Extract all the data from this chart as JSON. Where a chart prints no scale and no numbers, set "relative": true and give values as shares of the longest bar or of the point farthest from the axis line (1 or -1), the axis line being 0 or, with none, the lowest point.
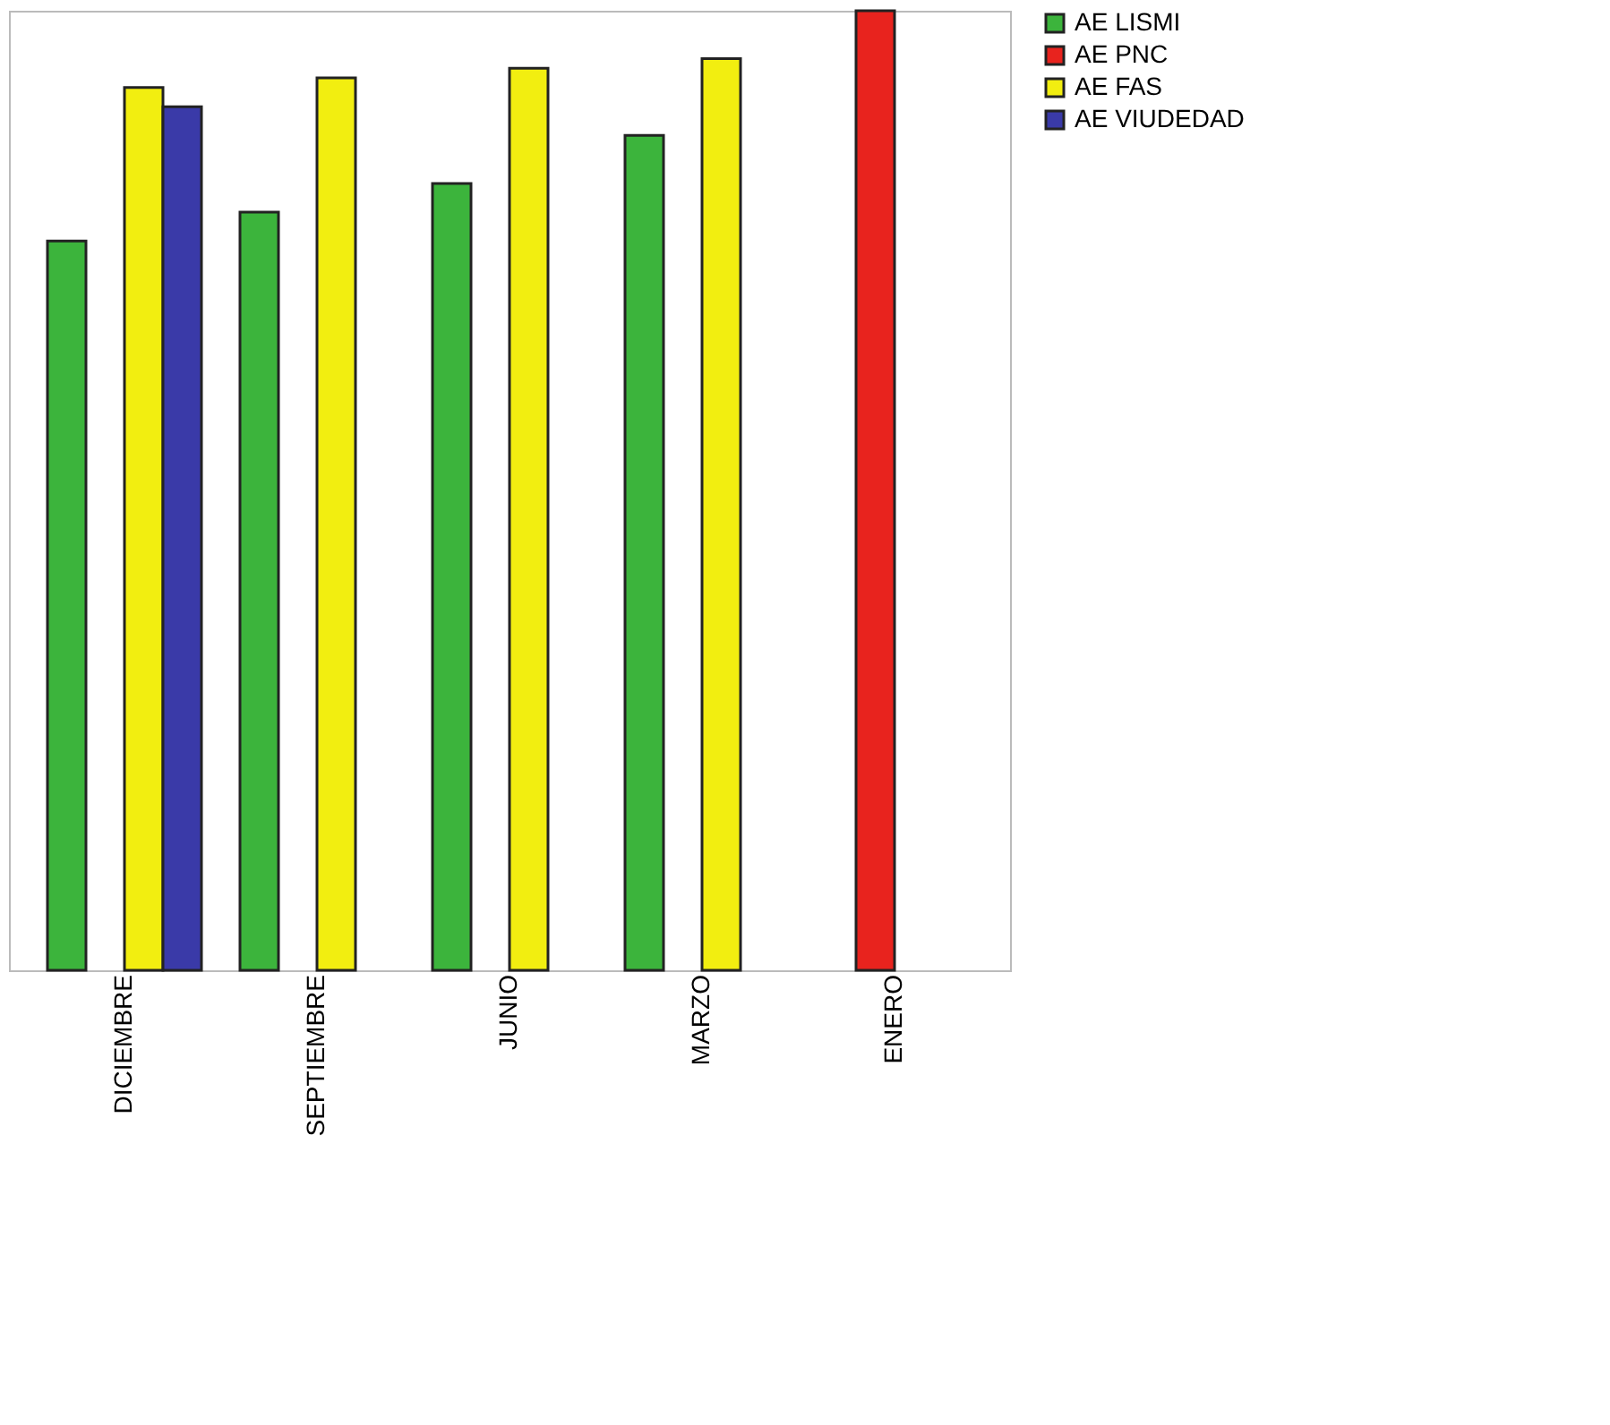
{
  "chart_data": {
    "type": "bar",
    "relative": true,
    "grid": false,
    "legend": "right",
    "categories": [
      "DICIEMBRE",
      "SEPTIEMBRE",
      "JUNIO",
      "MARZO",
      "ENERO"
    ],
    "series": [
      {
        "name": "AE LISMI",
        "color": "#3cb43c",
        "values": [
          0.76,
          0.79,
          0.82,
          0.87,
          null
        ]
      },
      {
        "name": "AE PNC",
        "color": "#e8231e",
        "values": [
          null,
          null,
          null,
          null,
          1
        ]
      },
      {
        "name": "AE FAS",
        "color": "#f2ee10",
        "values": [
          0.92,
          0.93,
          0.94,
          0.95,
          null
        ]
      },
      {
        "name": "AE VIUDEDAD",
        "color": "#3a3aa8",
        "values": [
          0.9,
          null,
          null,
          null,
          null
        ]
      }
    ]
  }
}
